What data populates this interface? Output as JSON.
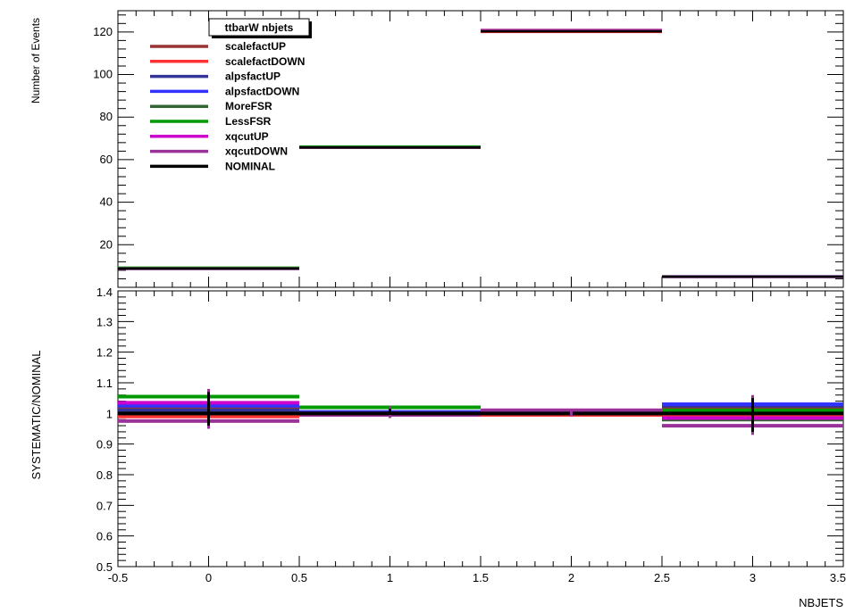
{
  "chart_data": [
    {
      "type": "line",
      "title": "ttbarW nbjets",
      "ylabel": "Number of Events",
      "xlabel": "",
      "xlim": [
        -0.5,
        3.5
      ],
      "ylim": [
        0,
        130
      ],
      "yticks": [
        "20",
        "40",
        "60",
        "80",
        "100",
        "120"
      ],
      "bin_edges": [
        -0.5,
        0.5,
        1.5,
        2.5,
        3.5
      ],
      "legend_position": "top-left",
      "series": [
        {
          "name": "scalefactUP",
          "color": "#993333",
          "values": [
            9.0,
            66.0,
            121.0,
            5.1
          ]
        },
        {
          "name": "scalefactDOWN",
          "color": "#ff3333",
          "values": [
            8.7,
            65.7,
            120.0,
            5.0
          ]
        },
        {
          "name": "alpsfactUP",
          "color": "#333399",
          "values": [
            8.9,
            65.8,
            120.6,
            5.1
          ]
        },
        {
          "name": "alpsfactDOWN",
          "color": "#3333ff",
          "values": [
            9.0,
            66.0,
            120.7,
            5.2
          ]
        },
        {
          "name": "MoreFSR",
          "color": "#336633",
          "values": [
            8.8,
            65.9,
            120.5,
            5.0
          ]
        },
        {
          "name": "LessFSR",
          "color": "#009900",
          "values": [
            9.3,
            66.2,
            120.8,
            5.2
          ]
        },
        {
          "name": "xqcutUP",
          "color": "#cc00cc",
          "values": [
            8.9,
            65.8,
            120.9,
            5.1
          ]
        },
        {
          "name": "xqcutDOWN",
          "color": "#993399",
          "values": [
            8.6,
            65.6,
            120.8,
            4.8
          ]
        },
        {
          "name": "NOMINAL",
          "color": "#000000",
          "values": [
            8.8,
            65.7,
            120.3,
            5.0
          ]
        }
      ]
    },
    {
      "type": "line",
      "ylabel": "SYSTEMATIC/NOMINAL",
      "xlabel": "NBJETS",
      "xlim": [
        -0.5,
        3.5
      ],
      "ylim": [
        0.5,
        1.4
      ],
      "yticks": [
        "0.5",
        "0.6",
        "0.7",
        "0.8",
        "0.9",
        "1",
        "1.1",
        "1.2",
        "1.3"
      ],
      "xticks": [
        "-0.5",
        "0",
        "0.5",
        "1",
        "1.5",
        "2",
        "2.5",
        "3",
        "3.5"
      ],
      "top_tick_label": "1.4",
      "bin_edges": [
        -0.5,
        0.5,
        1.5,
        2.5,
        3.5
      ],
      "series": [
        {
          "name": "scalefactUP",
          "color": "#993333",
          "values": [
            1.02,
            1.0,
            1.005,
            1.02
          ]
        },
        {
          "name": "scalefactDOWN",
          "color": "#ff3333",
          "values": [
            0.99,
            0.995,
            0.995,
            0.99
          ]
        },
        {
          "name": "alpsfactUP",
          "color": "#333399",
          "values": [
            1.01,
            1.0,
            1.0,
            1.025
          ]
        },
        {
          "name": "alpsfactDOWN",
          "color": "#3333ff",
          "values": [
            1.025,
            1.005,
            1.005,
            1.03
          ]
        },
        {
          "name": "MoreFSR",
          "color": "#336633",
          "values": [
            1.0,
            1.0,
            1.0,
            0.98
          ]
        },
        {
          "name": "LessFSR",
          "color": "#009900",
          "values": [
            1.055,
            1.02,
            1.005,
            1.01
          ]
        },
        {
          "name": "xqcutUP",
          "color": "#cc00cc",
          "values": [
            1.035,
            1.0,
            1.01,
            0.985
          ]
        },
        {
          "name": "xqcutDOWN",
          "color": "#993399",
          "values": [
            0.975,
            0.995,
            1.01,
            0.96
          ]
        },
        {
          "name": "NOMINAL",
          "color": "#000000",
          "values": [
            1.0,
            1.0,
            1.0,
            1.0
          ]
        }
      ],
      "error_bars": {
        "x": [
          0,
          1,
          2,
          3
        ],
        "low": [
          0.95,
          0.985,
          0.99,
          0.93
        ],
        "high": [
          1.08,
          1.025,
          1.01,
          1.06
        ]
      }
    }
  ]
}
